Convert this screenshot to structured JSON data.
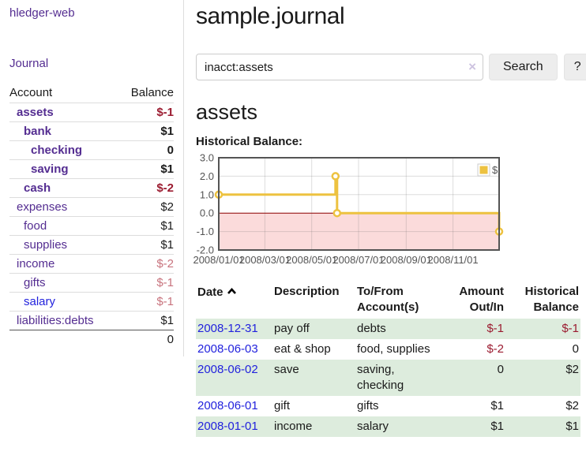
{
  "brand": "hledger-web",
  "nav": {
    "journal": "Journal"
  },
  "sidebar": {
    "header": {
      "account": "Account",
      "balance": "Balance"
    },
    "accounts": [
      {
        "name": "assets",
        "balance": "$-1"
      },
      {
        "name": "bank",
        "balance": "$1"
      },
      {
        "name": "checking",
        "balance": "0"
      },
      {
        "name": "saving",
        "balance": "$1"
      },
      {
        "name": "cash",
        "balance": "$-2"
      },
      {
        "name": "expenses",
        "balance": "$2"
      },
      {
        "name": "food",
        "balance": "$1"
      },
      {
        "name": "supplies",
        "balance": "$1"
      },
      {
        "name": "income",
        "balance": "$-2"
      },
      {
        "name": "gifts",
        "balance": "$-1"
      },
      {
        "name": "salary",
        "balance": "$-1"
      },
      {
        "name": "liabilities:debts",
        "balance": "$1"
      }
    ],
    "total": "0"
  },
  "page": {
    "title": "sample.journal",
    "account_heading": "assets",
    "chart_title": "Historical Balance:"
  },
  "search": {
    "value": "inacct:assets",
    "clear_icon": "×",
    "search_button": "Search",
    "help_button": "?"
  },
  "chart_data": {
    "type": "line",
    "step": true,
    "title": "Historical Balance",
    "legend": [
      {
        "label": "$",
        "color": "#EDC240"
      }
    ],
    "legend_position": "top-right",
    "grid": true,
    "ylim": [
      -2,
      3
    ],
    "y_ticks": [
      "3.0",
      "2.0",
      "1.0",
      "0.0",
      "-1.0",
      "-2.0"
    ],
    "x_ticks": [
      {
        "label": "2008/01/01",
        "date": "2008-01-01"
      },
      {
        "label": "2008/03/01",
        "date": "2008-03-01"
      },
      {
        "label": "2008/05/01",
        "date": "2008-05-01"
      },
      {
        "label": "2008/07/01",
        "date": "2008-07-01"
      },
      {
        "label": "2008/09/01",
        "date": "2008-09-01"
      },
      {
        "label": "2008/11/01",
        "date": "2008-11-01"
      }
    ],
    "series": [
      {
        "name": "$",
        "color": "#EDC240",
        "points": [
          {
            "date": "2008-01-01",
            "value": 1
          },
          {
            "date": "2008-06-01",
            "value": 2
          },
          {
            "date": "2008-06-03",
            "value": 0
          },
          {
            "date": "2008-12-31",
            "value": -1
          }
        ]
      }
    ],
    "negative_region_color": "#FBDBDB",
    "zero_line_color": "#8B0000",
    "axis_text_color": "#545454"
  },
  "register": {
    "headers": {
      "date": "Date",
      "description": "Description",
      "accounts": "To/From Account(s)",
      "amount": "Amount Out/In",
      "balance": "Historical Balance"
    },
    "rows": [
      {
        "date": "2008-12-31",
        "description": "pay off",
        "accounts": "debts",
        "amount": "$-1",
        "balance": "$-1"
      },
      {
        "date": "2008-06-03",
        "description": "eat & shop",
        "accounts": "food, supplies",
        "amount": "$-2",
        "balance": "0"
      },
      {
        "date": "2008-06-02",
        "description": "save",
        "accounts": "saving,\nchecking",
        "amount": "0",
        "balance": "$2"
      },
      {
        "date": "2008-06-01",
        "description": "gift",
        "accounts": "gifts",
        "amount": "$1",
        "balance": "$2"
      },
      {
        "date": "2008-01-01",
        "description": "income",
        "accounts": "salary",
        "amount": "$1",
        "balance": "$1"
      }
    ]
  },
  "colors": {
    "link_purple": "#542D91",
    "link_blue": "#2222DD",
    "negative_strong": "#9B1B30",
    "negative_muted": "#C8737D",
    "row_stripe_green": "#DDECDD",
    "chart_line": "#EDC240"
  }
}
